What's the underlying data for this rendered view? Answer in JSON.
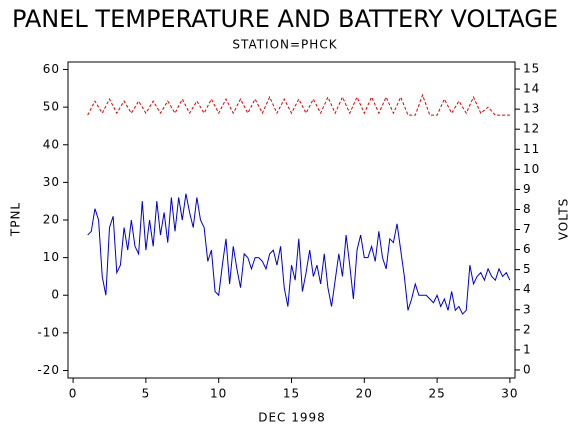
{
  "chart_data": {
    "type": "line",
    "title": "PANEL TEMPERATURE AND BATTERY VOLTAGE",
    "subtitle": "STATION=PHCK",
    "x_label": "DEC 1998",
    "y_label": "TPNL",
    "y2_label": "VOLTS",
    "xlim": [
      -0.35,
      30.35
    ],
    "xticks": [
      0,
      5,
      10,
      15,
      20,
      25,
      30
    ],
    "ylim": [
      -22,
      62
    ],
    "yticks": [
      -20,
      -10,
      0,
      10,
      20,
      30,
      40,
      50,
      60
    ],
    "y2lim": [
      -0.4,
      15.35
    ],
    "y2ticks": [
      0,
      1,
      2,
      3,
      4,
      5,
      6,
      7,
      8,
      9,
      10,
      11,
      12,
      13,
      14,
      15
    ],
    "series": [
      {
        "color": "#0000cc",
        "x": [
          1,
          1.25,
          1.5,
          1.75,
          2,
          2.25,
          2.5,
          2.75,
          3,
          3.25,
          3.5,
          3.75,
          4,
          4.25,
          4.5,
          4.75,
          5,
          5.25,
          5.5,
          5.75,
          6,
          6.25,
          6.5,
          6.75,
          7,
          7.25,
          7.5,
          7.75,
          8,
          8.25,
          8.5,
          8.75,
          9,
          9.25,
          9.5,
          9.75,
          10,
          10.25,
          10.5,
          10.75,
          11,
          11.25,
          11.5,
          11.75,
          12,
          12.25,
          12.5,
          12.75,
          13,
          13.25,
          13.5,
          13.75,
          14,
          14.25,
          14.5,
          14.75,
          15,
          15.25,
          15.5,
          15.75,
          16,
          16.25,
          16.5,
          16.75,
          17,
          17.25,
          17.5,
          17.75,
          18,
          18.25,
          18.5,
          18.75,
          19,
          19.25,
          19.5,
          19.75,
          20,
          20.25,
          20.5,
          20.75,
          21,
          21.25,
          21.5,
          21.75,
          22,
          22.25,
          22.5,
          22.75,
          23,
          23.25,
          23.5,
          23.75,
          24,
          24.25,
          24.5,
          24.75,
          25,
          25.25,
          25.5,
          25.75,
          26,
          26.25,
          26.5,
          26.75,
          27,
          27.25,
          27.5,
          27.75,
          28,
          28.25,
          28.5,
          28.75,
          29,
          29.25,
          29.5,
          29.75,
          30
        ],
        "values": [
          16,
          17,
          23,
          20,
          5,
          0,
          18,
          21,
          6,
          8,
          18,
          12,
          20,
          13,
          11,
          25,
          12,
          20,
          13,
          25,
          16,
          22,
          14,
          26,
          17,
          26,
          20,
          27,
          22,
          18,
          26,
          20,
          18,
          9,
          12,
          1,
          0,
          8,
          15,
          3,
          13,
          7,
          2,
          11,
          10,
          7,
          10,
          10,
          9,
          7,
          11,
          12,
          8,
          13,
          2,
          -3,
          8,
          4,
          15,
          1,
          6,
          12,
          5,
          8,
          3,
          11,
          2,
          -3,
          4,
          11,
          5,
          16,
          8,
          -1,
          12,
          16,
          10,
          10,
          13,
          9,
          17,
          10,
          7,
          15,
          14,
          19,
          12,
          5,
          -4,
          -1,
          3,
          0,
          0,
          0,
          -1,
          -2,
          0,
          -3,
          -1,
          -4,
          1,
          -4,
          -3,
          -5,
          -4,
          8,
          3,
          5,
          6,
          4,
          7,
          5,
          4,
          7,
          5,
          6,
          4
        ]
      },
      {
        "color": "#dd0000",
        "axis": "y2",
        "dashed": true,
        "x": [
          1,
          1.5,
          2,
          2.5,
          3,
          3.5,
          4,
          4.5,
          5,
          5.5,
          6,
          6.5,
          7,
          7.5,
          8,
          8.5,
          9,
          9.5,
          10,
          10.5,
          11,
          11.5,
          12,
          12.5,
          13,
          13.5,
          14,
          14.5,
          15,
          15.5,
          16,
          16.5,
          17,
          17.5,
          18,
          18.5,
          19,
          19.5,
          20,
          20.5,
          21,
          21.5,
          22,
          22.5,
          23,
          23.5,
          24,
          24.5,
          25,
          25.5,
          26,
          26.5,
          27,
          27.5,
          28,
          28.5,
          29,
          29.5,
          30
        ],
        "values": [
          12.7,
          13.4,
          12.8,
          13.5,
          12.8,
          13.4,
          12.8,
          13.4,
          12.8,
          13.4,
          12.8,
          13.4,
          12.8,
          13.5,
          12.8,
          13.4,
          12.8,
          13.5,
          12.8,
          13.5,
          12.8,
          13.5,
          12.8,
          13.5,
          12.8,
          13.6,
          12.8,
          13.5,
          12.8,
          13.5,
          12.8,
          13.5,
          12.8,
          13.6,
          12.8,
          13.6,
          12.8,
          13.6,
          12.8,
          13.6,
          12.8,
          13.6,
          12.8,
          13.6,
          12.7,
          12.7,
          13.7,
          12.7,
          12.7,
          13.5,
          12.8,
          13.4,
          12.8,
          13.6,
          12.8,
          13.1,
          12.7,
          12.7,
          12.7
        ]
      }
    ]
  }
}
